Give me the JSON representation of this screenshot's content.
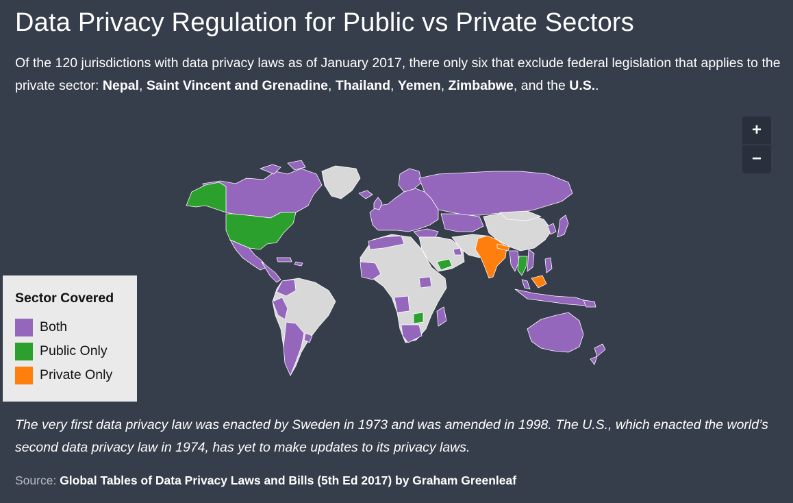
{
  "title": "Data Privacy Regulation for Public vs Private Sectors",
  "subtitle": {
    "intro": "Of the 120 jurisdictions with data privacy laws as of January 2017, there only six that exclude federal legislation that applies to the private sector: ",
    "countries": [
      "Nepal",
      "Saint Vincent and Grenadine",
      "Thailand",
      "Yemen",
      "Zimbabwe",
      "U.S."
    ],
    "sep": ", ",
    "and_the": ", and the ",
    "end": "."
  },
  "zoom": {
    "in_label": "+",
    "out_label": "−"
  },
  "legend": {
    "title": "Sector Covered",
    "items": [
      {
        "label": "Both",
        "color": "#9467bd"
      },
      {
        "label": "Public Only",
        "color": "#2ca02c"
      },
      {
        "label": "Private Only",
        "color": "#ff7f0e"
      }
    ]
  },
  "colors": {
    "no_law": "#d8d8d8",
    "background": "#363d4b"
  },
  "footnote": "The very first data privacy law was enacted by Sweden in 1973 and was amended in 1998. The U.S., which enacted the world’s second data privacy law in 1974, has yet to make updates to its privacy laws.",
  "source": {
    "label": "Source: ",
    "text": "Global Tables of Data Privacy Laws and Bills (5th Ed 2017) by Graham Greenleaf"
  }
}
